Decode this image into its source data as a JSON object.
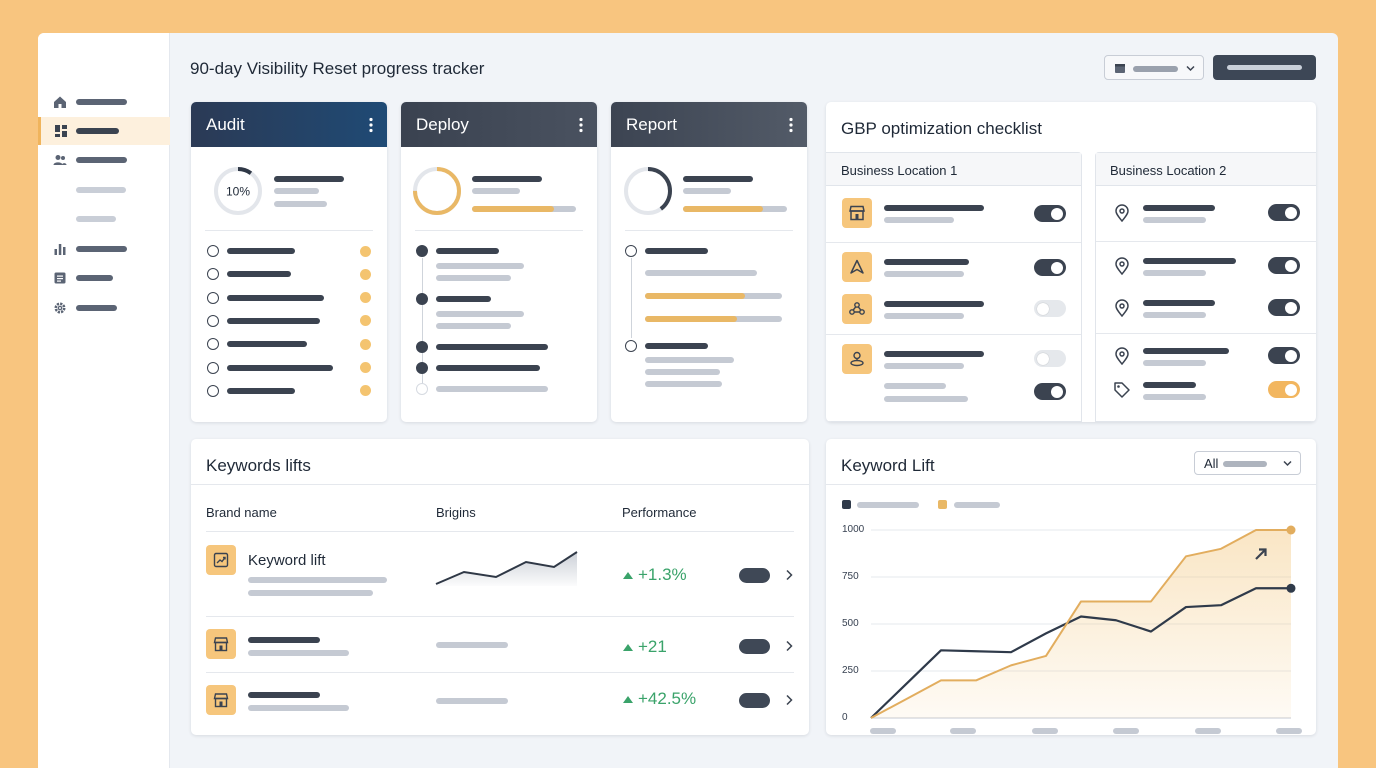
{
  "page": {
    "title": "90-day Visibility Reset progress tracker"
  },
  "sidebar": {
    "icons": [
      "home-icon",
      "dashboard-icon",
      "users-icon",
      "bar-chart-icon",
      "document-icon",
      "gear-icon"
    ]
  },
  "phases": [
    {
      "title": "Audit",
      "progress_label": "10%",
      "progress": 0.1
    },
    {
      "title": "Deploy",
      "progress": 0.75
    },
    {
      "title": "Report",
      "progress": 0.4
    }
  ],
  "gbp": {
    "title": "GBP optimization checklist",
    "locations": [
      {
        "name": "Business Location 1"
      },
      {
        "name": "Business Location 2"
      }
    ]
  },
  "keywords_table": {
    "title": "Keywords lifts",
    "columns": [
      "Brand name",
      "Brigins",
      "Performance"
    ],
    "rows": [
      {
        "name": "Keyword lift",
        "performance": "+1.3%"
      },
      {
        "name": "",
        "performance": "+21"
      },
      {
        "name": "",
        "performance": "+42.5%"
      }
    ]
  },
  "keyword_lift_chart": {
    "title": "Keyword Lift",
    "filter_label": "All",
    "colors": {
      "dark": "#2f3a4a",
      "gold": "#e2ad5e"
    }
  },
  "chart_data": {
    "type": "line",
    "title": "Keyword Lift",
    "xlabel": "",
    "ylabel": "",
    "ylim": [
      0,
      1000
    ],
    "yticks": [
      "1000",
      "750",
      "500",
      "250",
      "0"
    ],
    "x": [
      0,
      1,
      2,
      3,
      4,
      5,
      6,
      7,
      8,
      9,
      10,
      11,
      12
    ],
    "series": [
      {
        "color": "#2f3a4a",
        "values": [
          0,
          180,
          360,
          355,
          350,
          450,
          540,
          520,
          460,
          590,
          600,
          690,
          690
        ]
      },
      {
        "color": "#e2ad5e",
        "values": [
          0,
          100,
          200,
          200,
          280,
          330,
          620,
          620,
          620,
          860,
          900,
          1000,
          1000
        ]
      }
    ]
  }
}
